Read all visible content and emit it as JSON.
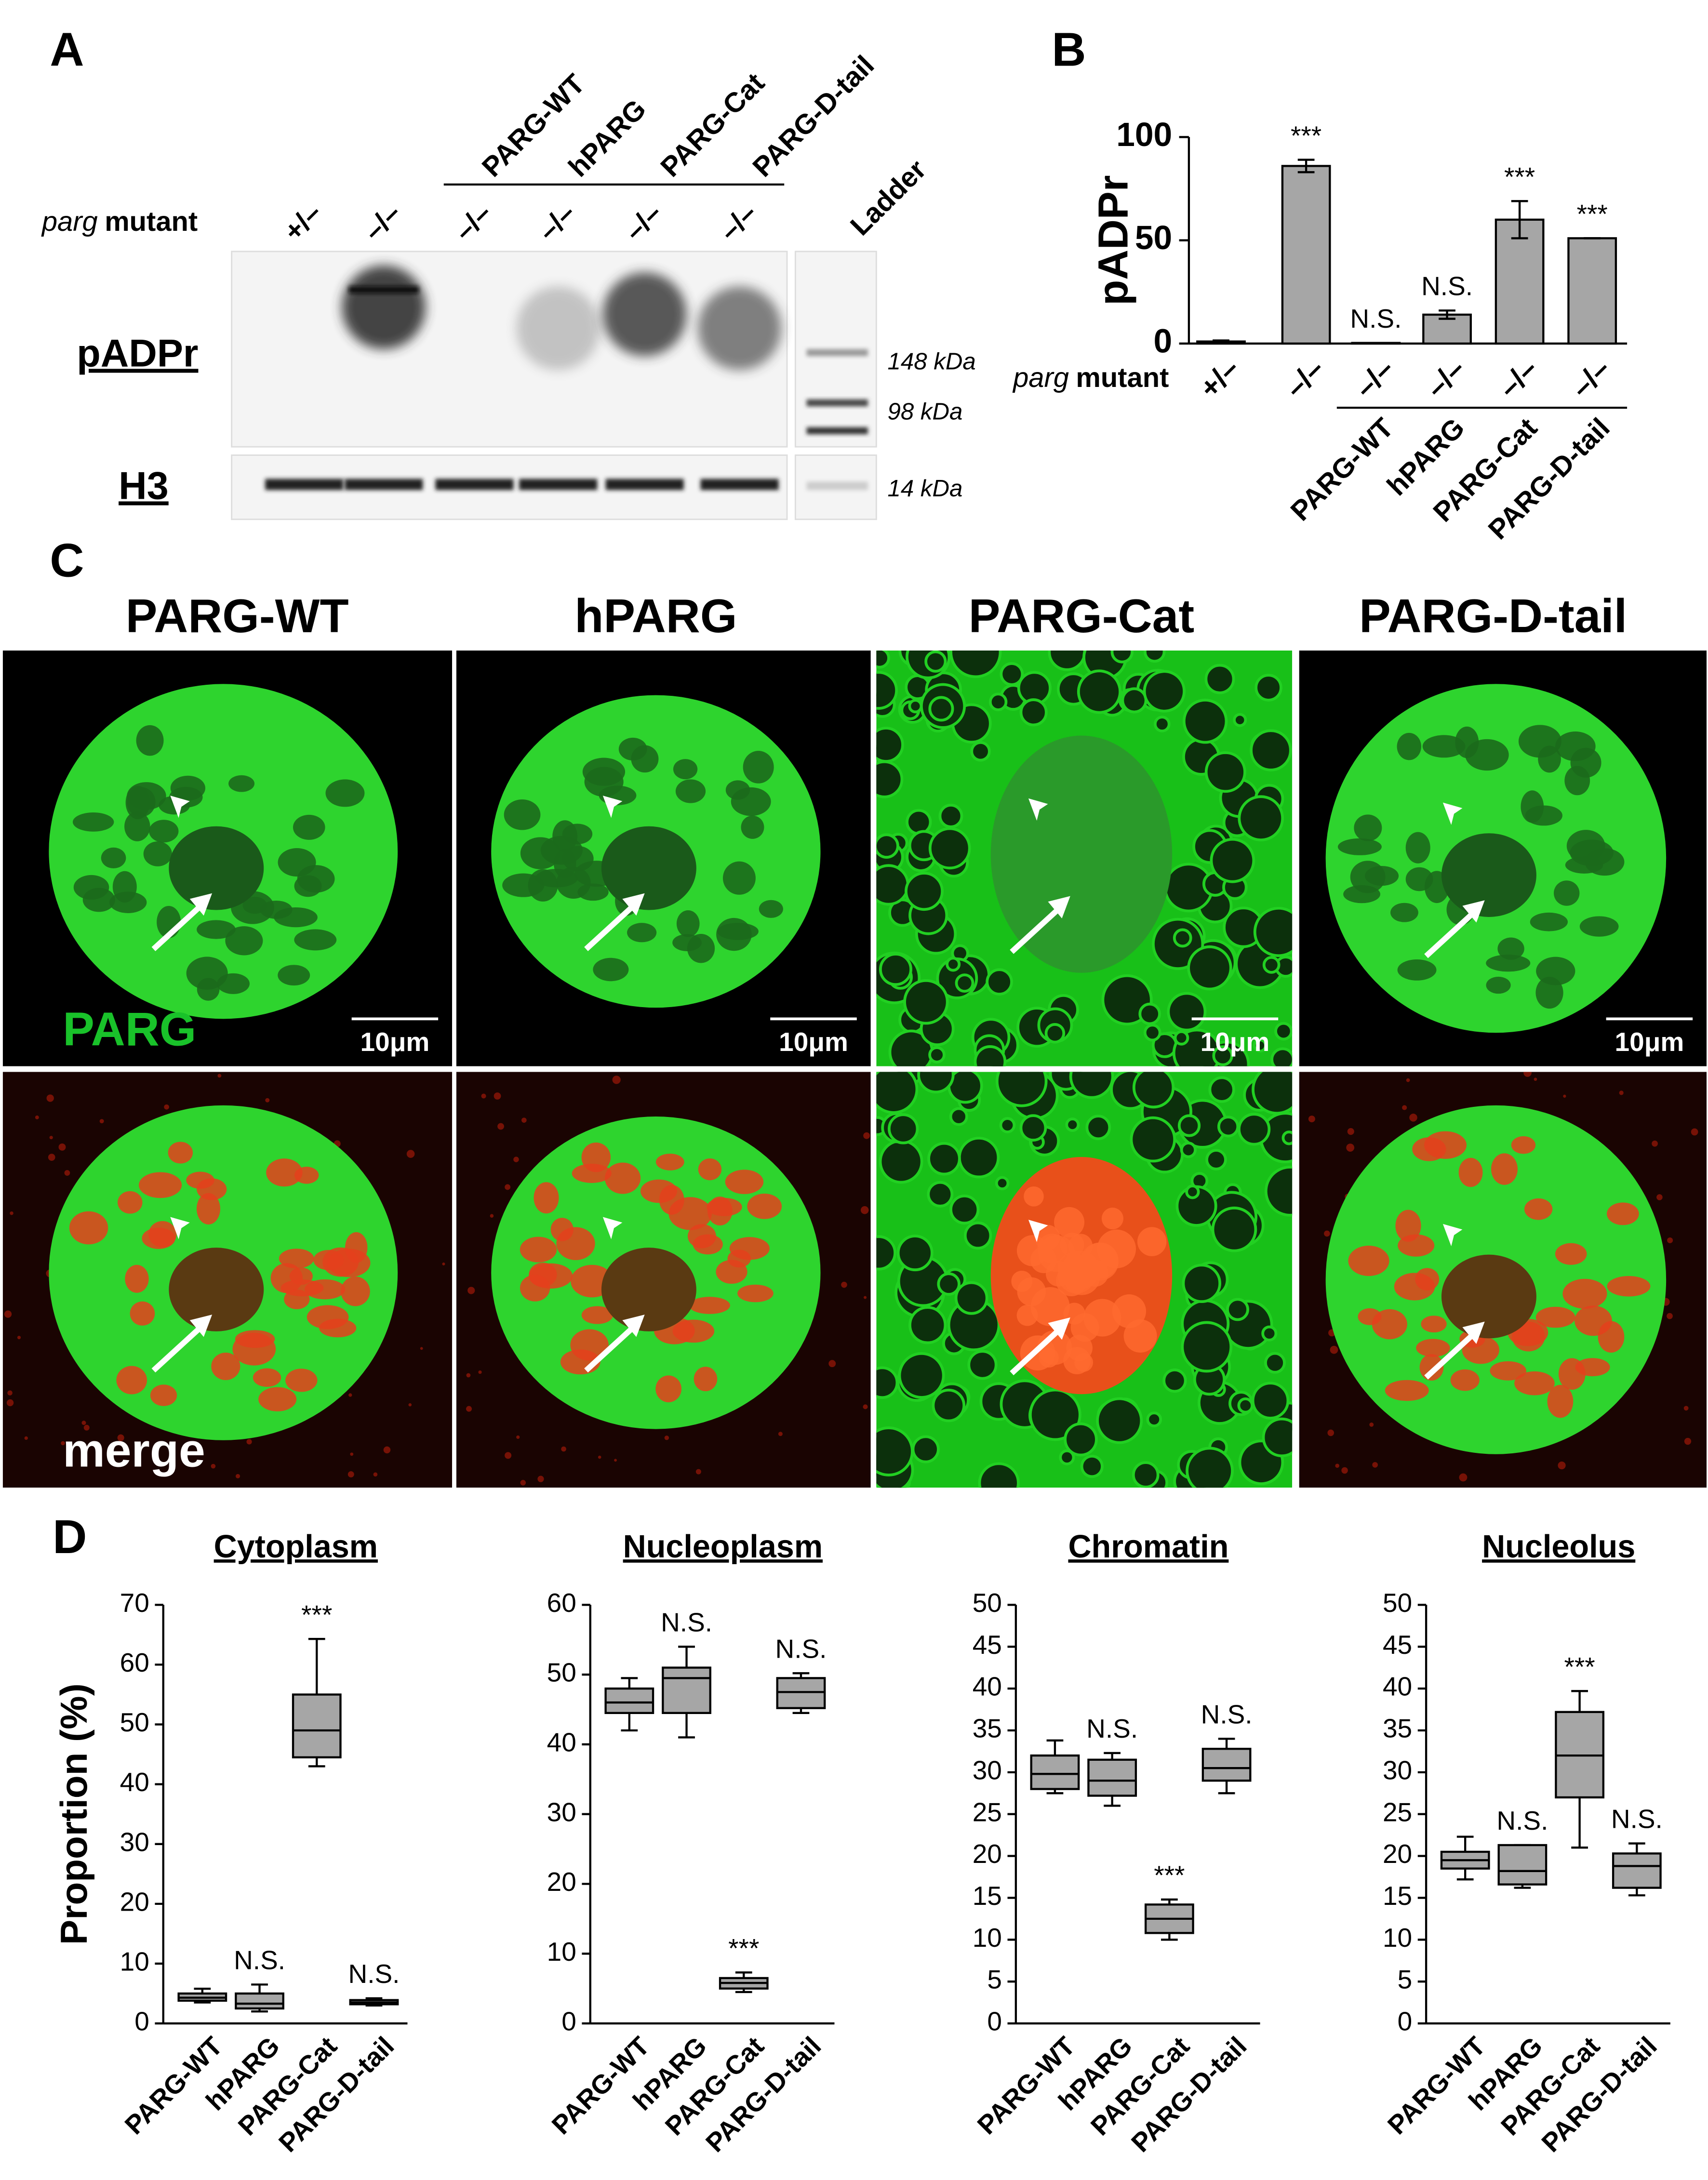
{
  "panel_labels": [
    "A",
    "B",
    "C",
    "D"
  ],
  "blot": {
    "constructs": [
      "PARG-WT",
      "hPARG",
      "PARG-Cat",
      "PARG-D-tail"
    ],
    "ladder": "Ladder",
    "row_label": {
      "italic": "parg",
      "bold": "mutant"
    },
    "genotypes": [
      "+/–",
      "–/–",
      "–/–",
      "–/–",
      "–/–",
      "–/–"
    ],
    "rows": [
      "pADPr",
      "H3"
    ],
    "markers": [
      "148 kDa",
      "98 kDa",
      "14 kDa"
    ]
  },
  "microscopy": {
    "columns": [
      "PARG-WT",
      "hPARG",
      "PARG-Cat",
      "PARG-D-tail"
    ],
    "rows": [
      "PARG",
      "merge"
    ],
    "scale_bars": [
      "10μm",
      "10μm",
      "10μm",
      "10μm"
    ]
  },
  "chart_data": [
    {
      "type": "bar",
      "ylabel": "pADPr",
      "row_label": {
        "italic": "parg",
        "bold": "mutant"
      },
      "categories": [
        "+/–",
        "–/–",
        "–/–",
        "–/–",
        "–/–",
        "–/–"
      ],
      "groups": [
        "PARG-WT",
        "hPARG",
        "PARG-Cat",
        "PARG-D-tail"
      ],
      "values": [
        1,
        86,
        0.3,
        14,
        60,
        51
      ],
      "errors": [
        0.5,
        3,
        0,
        2,
        9,
        0
      ],
      "annotations": [
        null,
        "***",
        "N.S.",
        "N.S.",
        "***",
        "***"
      ],
      "color": "#a6a6a6",
      "ylim": [
        0,
        100
      ],
      "yticks": [
        0,
        50,
        100
      ]
    },
    {
      "type": "box",
      "title": "Cytoplasm",
      "ylabel": "Proportion (%)",
      "categories": [
        "PARG-WT",
        "hPARG",
        "PARG-Cat",
        "PARG-D-tail"
      ],
      "min": [
        3.5,
        2,
        43,
        3
      ],
      "q1": [
        3.8,
        2.5,
        44.5,
        3.2
      ],
      "median": [
        4.3,
        3.3,
        49,
        3.5
      ],
      "q3": [
        5,
        5,
        55,
        3.9
      ],
      "max": [
        5.8,
        6.5,
        64.3,
        4.2
      ],
      "annotations": [
        null,
        "N.S.",
        "***",
        "N.S."
      ],
      "color": "#a6a6a6",
      "ylim": [
        0,
        70
      ],
      "yticks": [
        0,
        10,
        20,
        30,
        40,
        50,
        60,
        70
      ]
    },
    {
      "type": "box",
      "title": "Nucleoplasm",
      "categories": [
        "PARG-WT",
        "hPARG",
        "PARG-Cat",
        "PARG-D-tail"
      ],
      "min": [
        42,
        41,
        4.5,
        44.5
      ],
      "q1": [
        44.5,
        44.5,
        5,
        45.2
      ],
      "median": [
        46,
        49.5,
        5.8,
        47.5
      ],
      "q3": [
        48,
        51,
        6.5,
        49.5
      ],
      "max": [
        49.5,
        54,
        7.3,
        50.2
      ],
      "annotations": [
        null,
        "N.S.",
        "***",
        "N.S."
      ],
      "color": "#a6a6a6",
      "ylim": [
        0,
        60
      ],
      "yticks": [
        0,
        10,
        20,
        30,
        40,
        50,
        60
      ]
    },
    {
      "type": "box",
      "title": "Chromatin",
      "categories": [
        "PARG-WT",
        "hPARG",
        "PARG-Cat",
        "PARG-D-tail"
      ],
      "min": [
        27.5,
        26,
        10,
        27.5
      ],
      "q1": [
        28,
        27.2,
        10.8,
        29
      ],
      "median": [
        29.8,
        29,
        12.5,
        30.5
      ],
      "q3": [
        32,
        31.5,
        14.2,
        32.8
      ],
      "max": [
        33.8,
        32.3,
        14.8,
        34
      ],
      "annotations": [
        null,
        "N.S.",
        "***",
        "N.S."
      ],
      "color": "#a6a6a6",
      "ylim": [
        0,
        50
      ],
      "yticks": [
        0,
        5,
        10,
        15,
        20,
        25,
        30,
        35,
        40,
        45,
        50
      ]
    },
    {
      "type": "box",
      "title": "Nucleolus",
      "categories": [
        "PARG-WT",
        "hPARG",
        "PARG-Cat",
        "PARG-D-tail"
      ],
      "min": [
        17.2,
        16.2,
        21,
        15.3
      ],
      "q1": [
        18.5,
        16.6,
        27,
        16.2
      ],
      "median": [
        19.5,
        18.2,
        32,
        18.8
      ],
      "q3": [
        20.5,
        21.3,
        37.2,
        20.3
      ],
      "max": [
        22.3,
        21.3,
        39.7,
        21.5
      ],
      "annotations": [
        null,
        "N.S.",
        "***",
        "N.S."
      ],
      "color": "#a6a6a6",
      "ylim": [
        0,
        50
      ],
      "yticks": [
        0,
        5,
        10,
        15,
        20,
        25,
        30,
        35,
        40,
        45,
        50
      ]
    }
  ]
}
